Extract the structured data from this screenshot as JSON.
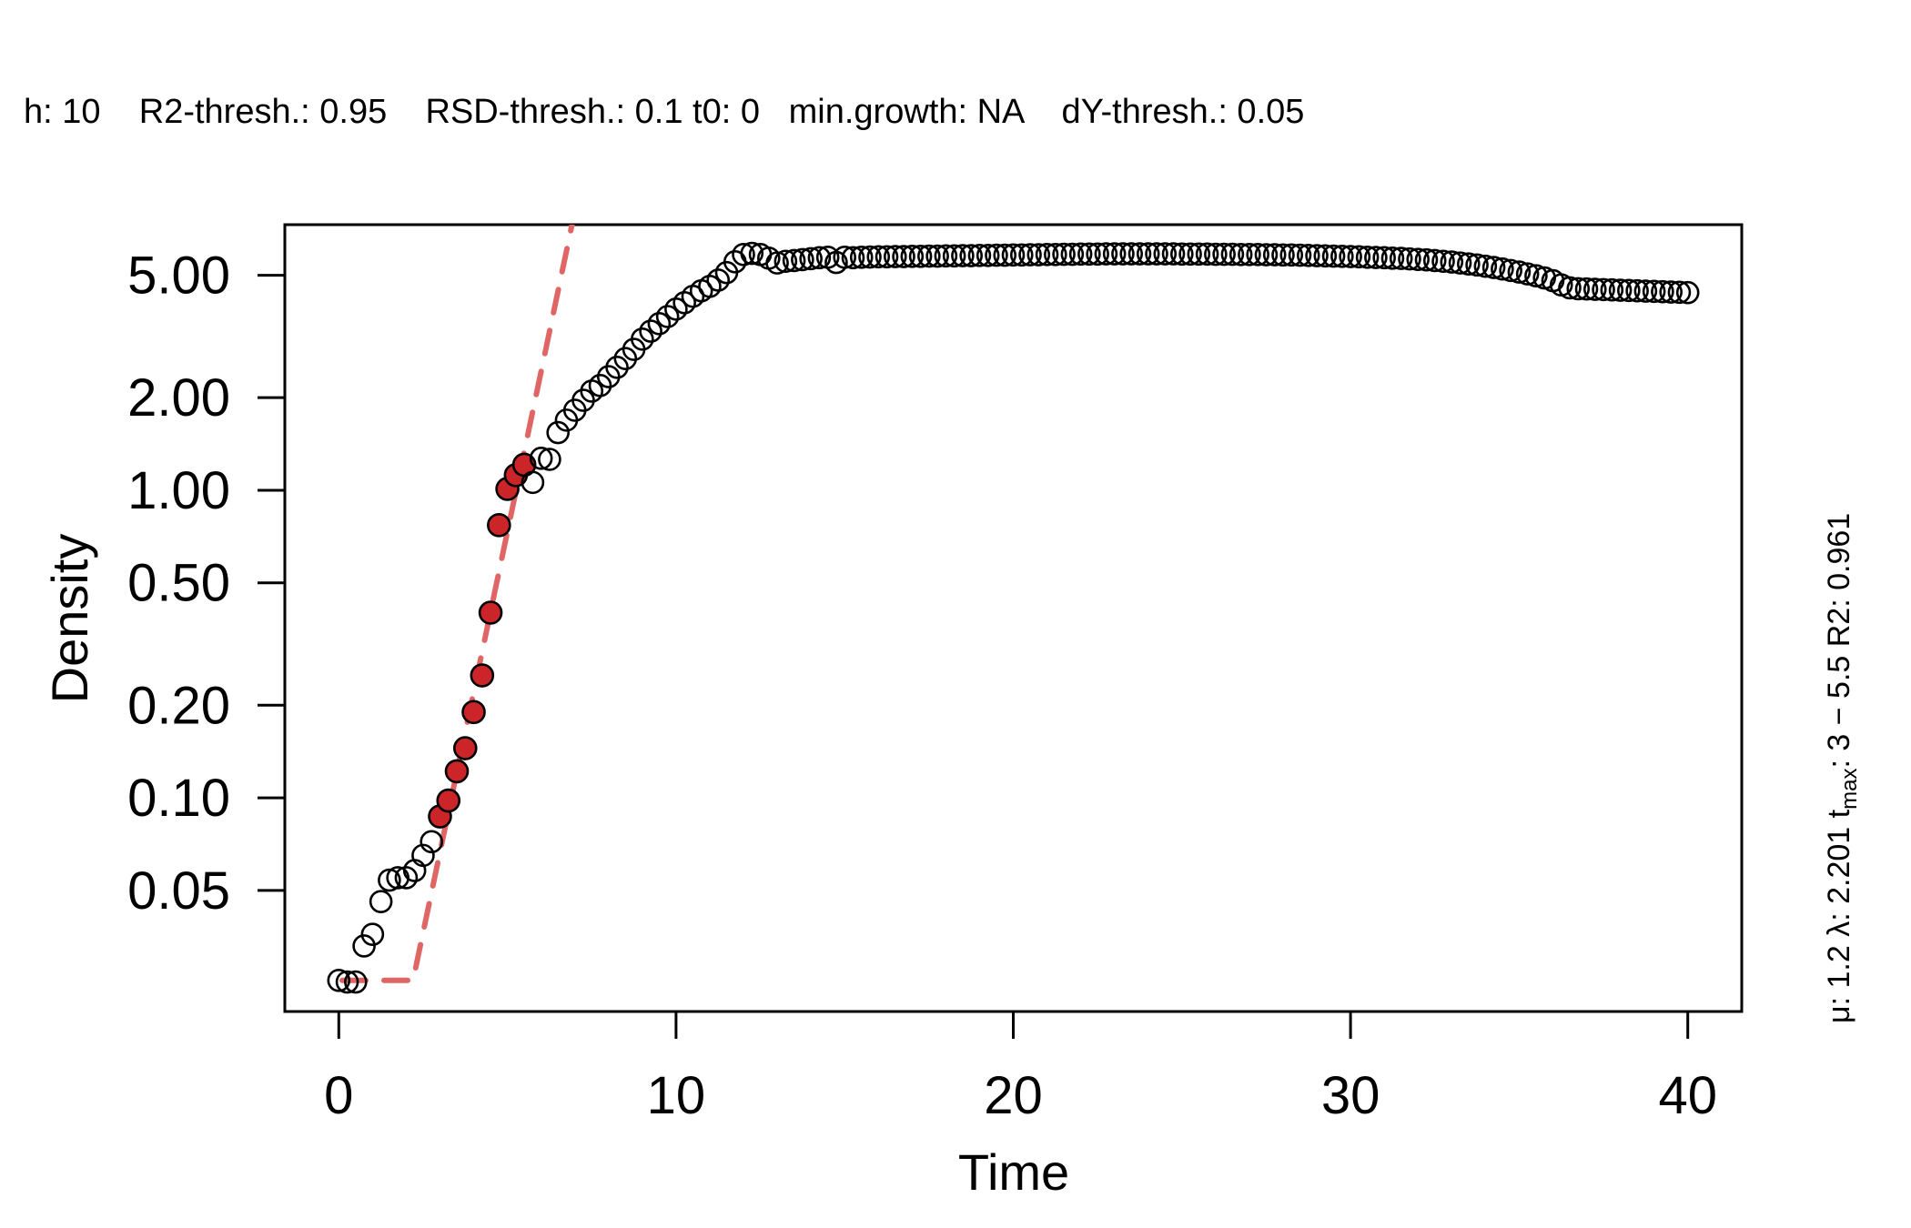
{
  "chart_data": {
    "type": "scatter",
    "subtitle": "h: 10    R2-thresh.: 0.95    RSD-thresh.: 0.1 t0: 0   min.growth: NA    dY-thresh.: 0.05",
    "xlabel": "Time",
    "ylabel": "Density",
    "y_scale": "log",
    "xlim": [
      -1.6,
      41.6
    ],
    "ylim": [
      0.0202,
      7.3
    ],
    "x_ticks": [
      0,
      10,
      20,
      30,
      40
    ],
    "x_tick_labels": [
      "0",
      "10",
      "20",
      "30",
      "40"
    ],
    "y_ticks": [
      0.05,
      0.1,
      0.2,
      0.5,
      1.0,
      2.0,
      5.0
    ],
    "y_tick_labels": [
      "0.05",
      "0.10",
      "0.20",
      "0.50",
      "1.00",
      "2.00",
      "5.00"
    ],
    "grid": false,
    "side_annotation": {
      "mu_label": "μ",
      "mu_value": "1.2",
      "lambda_label": "λ",
      "lambda_value": "2.201",
      "tmax_label": "t",
      "tmax_sub": "max",
      "tmax_value": "3 − 5.5",
      "r2_label": "R2",
      "r2_value": "0.961"
    },
    "colors": {
      "points_fill": "#ffffff",
      "points_stroke": "#000000",
      "fit_points_fill": "#CC2529",
      "fit_line": "#E06666"
    },
    "fit_window": [
      3.0,
      5.5
    ],
    "fit_line": {
      "lag": 2.201,
      "mu": 1.2,
      "y0": 0.0255,
      "t_start": 0.1,
      "style": "dashed"
    },
    "series": [
      {
        "name": "Density",
        "x_start": 0,
        "x_step": 0.25,
        "values": [
          0.0255,
          0.0252,
          0.0252,
          0.033,
          0.036,
          0.046,
          0.054,
          0.055,
          0.055,
          0.058,
          0.065,
          0.072,
          0.087,
          0.098,
          0.122,
          0.145,
          0.19,
          0.25,
          0.4,
          0.77,
          1.01,
          1.12,
          1.21,
          1.06,
          1.27,
          1.26,
          1.54,
          1.69,
          1.82,
          1.96,
          2.1,
          2.19,
          2.34,
          2.51,
          2.68,
          2.87,
          3.1,
          3.29,
          3.48,
          3.67,
          3.88,
          4.07,
          4.27,
          4.45,
          4.6,
          4.82,
          5.1,
          5.53,
          5.84,
          5.89,
          5.84,
          5.68,
          5.48,
          5.55,
          5.58,
          5.62,
          5.66,
          5.7,
          5.72,
          5.5,
          5.72,
          5.7,
          5.72,
          5.73,
          5.74,
          5.74,
          5.75,
          5.75,
          5.76,
          5.76,
          5.77,
          5.77,
          5.78,
          5.78,
          5.79,
          5.79,
          5.8,
          5.8,
          5.81,
          5.81,
          5.82,
          5.82,
          5.83,
          5.83,
          5.84,
          5.84,
          5.85,
          5.85,
          5.86,
          5.86,
          5.86,
          5.87,
          5.87,
          5.87,
          5.87,
          5.87,
          5.87,
          5.87,
          5.87,
          5.87,
          5.86,
          5.86,
          5.86,
          5.86,
          5.85,
          5.85,
          5.85,
          5.84,
          5.84,
          5.84,
          5.83,
          5.83,
          5.82,
          5.82,
          5.81,
          5.8,
          5.79,
          5.78,
          5.77,
          5.76,
          5.75,
          5.74,
          5.72,
          5.71,
          5.7,
          5.68,
          5.67,
          5.65,
          5.63,
          5.61,
          5.58,
          5.55,
          5.52,
          5.48,
          5.44,
          5.4,
          5.35,
          5.3,
          5.24,
          5.18,
          5.12,
          5.05,
          4.98,
          4.9,
          4.8,
          4.65,
          4.55,
          4.52,
          4.51,
          4.5,
          4.49,
          4.48,
          4.47,
          4.46,
          4.45,
          4.44,
          4.43,
          4.42,
          4.41,
          4.4,
          4.39
        ],
        "fit_window_marker": "filled"
      }
    ]
  }
}
